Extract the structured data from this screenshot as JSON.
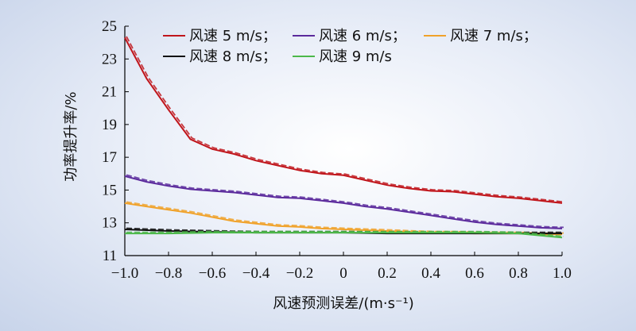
{
  "chart_data": {
    "type": "line",
    "xlabel": "风速预测误差/(m·s⁻¹)",
    "ylabel": "功率提升率/%",
    "xlim": [
      -1.0,
      1.0
    ],
    "ylim": [
      11,
      25
    ],
    "x_ticks": [
      "−1.0",
      "−0.8",
      "−0.6",
      "−0.4",
      "−0.2",
      "0",
      "0.2",
      "0.4",
      "0.6",
      "0.8",
      "1.0"
    ],
    "y_ticks": [
      "11",
      "13",
      "15",
      "17",
      "19",
      "21",
      "23",
      "25"
    ],
    "legend_position": "top",
    "series": [
      {
        "name": "风速 5 m/s；",
        "color": "#c0151b",
        "x": [
          -1.0,
          -0.9,
          -0.8,
          -0.7,
          -0.6,
          -0.5,
          -0.4,
          -0.3,
          -0.2,
          -0.1,
          0.0,
          0.1,
          0.2,
          0.3,
          0.4,
          0.5,
          0.6,
          0.7,
          0.8,
          0.9,
          1.0
        ],
        "y": [
          24.3,
          21.8,
          19.9,
          18.1,
          17.5,
          17.2,
          16.8,
          16.5,
          16.2,
          16.0,
          15.9,
          15.6,
          15.3,
          15.1,
          14.95,
          14.9,
          14.75,
          14.6,
          14.5,
          14.35,
          14.2
        ]
      },
      {
        "name": "风速 6 m/s；",
        "color": "#5b2a9c",
        "x": [
          -1.0,
          -0.9,
          -0.8,
          -0.7,
          -0.6,
          -0.5,
          -0.4,
          -0.3,
          -0.2,
          -0.1,
          0.0,
          0.1,
          0.2,
          0.3,
          0.4,
          0.5,
          0.6,
          0.7,
          0.8,
          0.9,
          1.0
        ],
        "y": [
          15.85,
          15.5,
          15.25,
          15.05,
          14.95,
          14.85,
          14.7,
          14.55,
          14.5,
          14.35,
          14.2,
          14.0,
          13.85,
          13.65,
          13.45,
          13.25,
          13.05,
          12.9,
          12.8,
          12.7,
          12.65
        ]
      },
      {
        "name": "风速 7 m/s；",
        "color": "#f0a22a",
        "x": [
          -1.0,
          -0.9,
          -0.8,
          -0.7,
          -0.6,
          -0.5,
          -0.4,
          -0.3,
          -0.2,
          -0.1,
          0.0,
          0.1,
          0.2,
          0.3,
          0.4,
          0.5,
          0.6,
          0.7,
          0.8,
          0.9,
          1.0
        ],
        "y": [
          14.2,
          14.0,
          13.8,
          13.6,
          13.35,
          13.1,
          12.95,
          12.8,
          12.75,
          12.65,
          12.6,
          12.55,
          12.5,
          12.45,
          12.4,
          12.4,
          12.35,
          12.35,
          12.35,
          12.3,
          12.3
        ]
      },
      {
        "name": "风速 8 m/s；",
        "color": "#111111",
        "x": [
          -1.0,
          -0.8,
          -0.6,
          -0.4,
          -0.2,
          0.0,
          0.2,
          0.4,
          0.6,
          0.8,
          1.0
        ],
        "y": [
          12.6,
          12.5,
          12.45,
          12.4,
          12.4,
          12.4,
          12.35,
          12.35,
          12.35,
          12.35,
          12.35
        ]
      },
      {
        "name": "风速 9 m/s",
        "color": "#4cb84a",
        "x": [
          -1.0,
          -0.8,
          -0.6,
          -0.4,
          -0.2,
          0.0,
          0.2,
          0.4,
          0.6,
          0.8,
          1.0
        ],
        "y": [
          12.35,
          12.35,
          12.4,
          12.4,
          12.4,
          12.4,
          12.4,
          12.4,
          12.4,
          12.35,
          12.1
        ]
      }
    ]
  }
}
